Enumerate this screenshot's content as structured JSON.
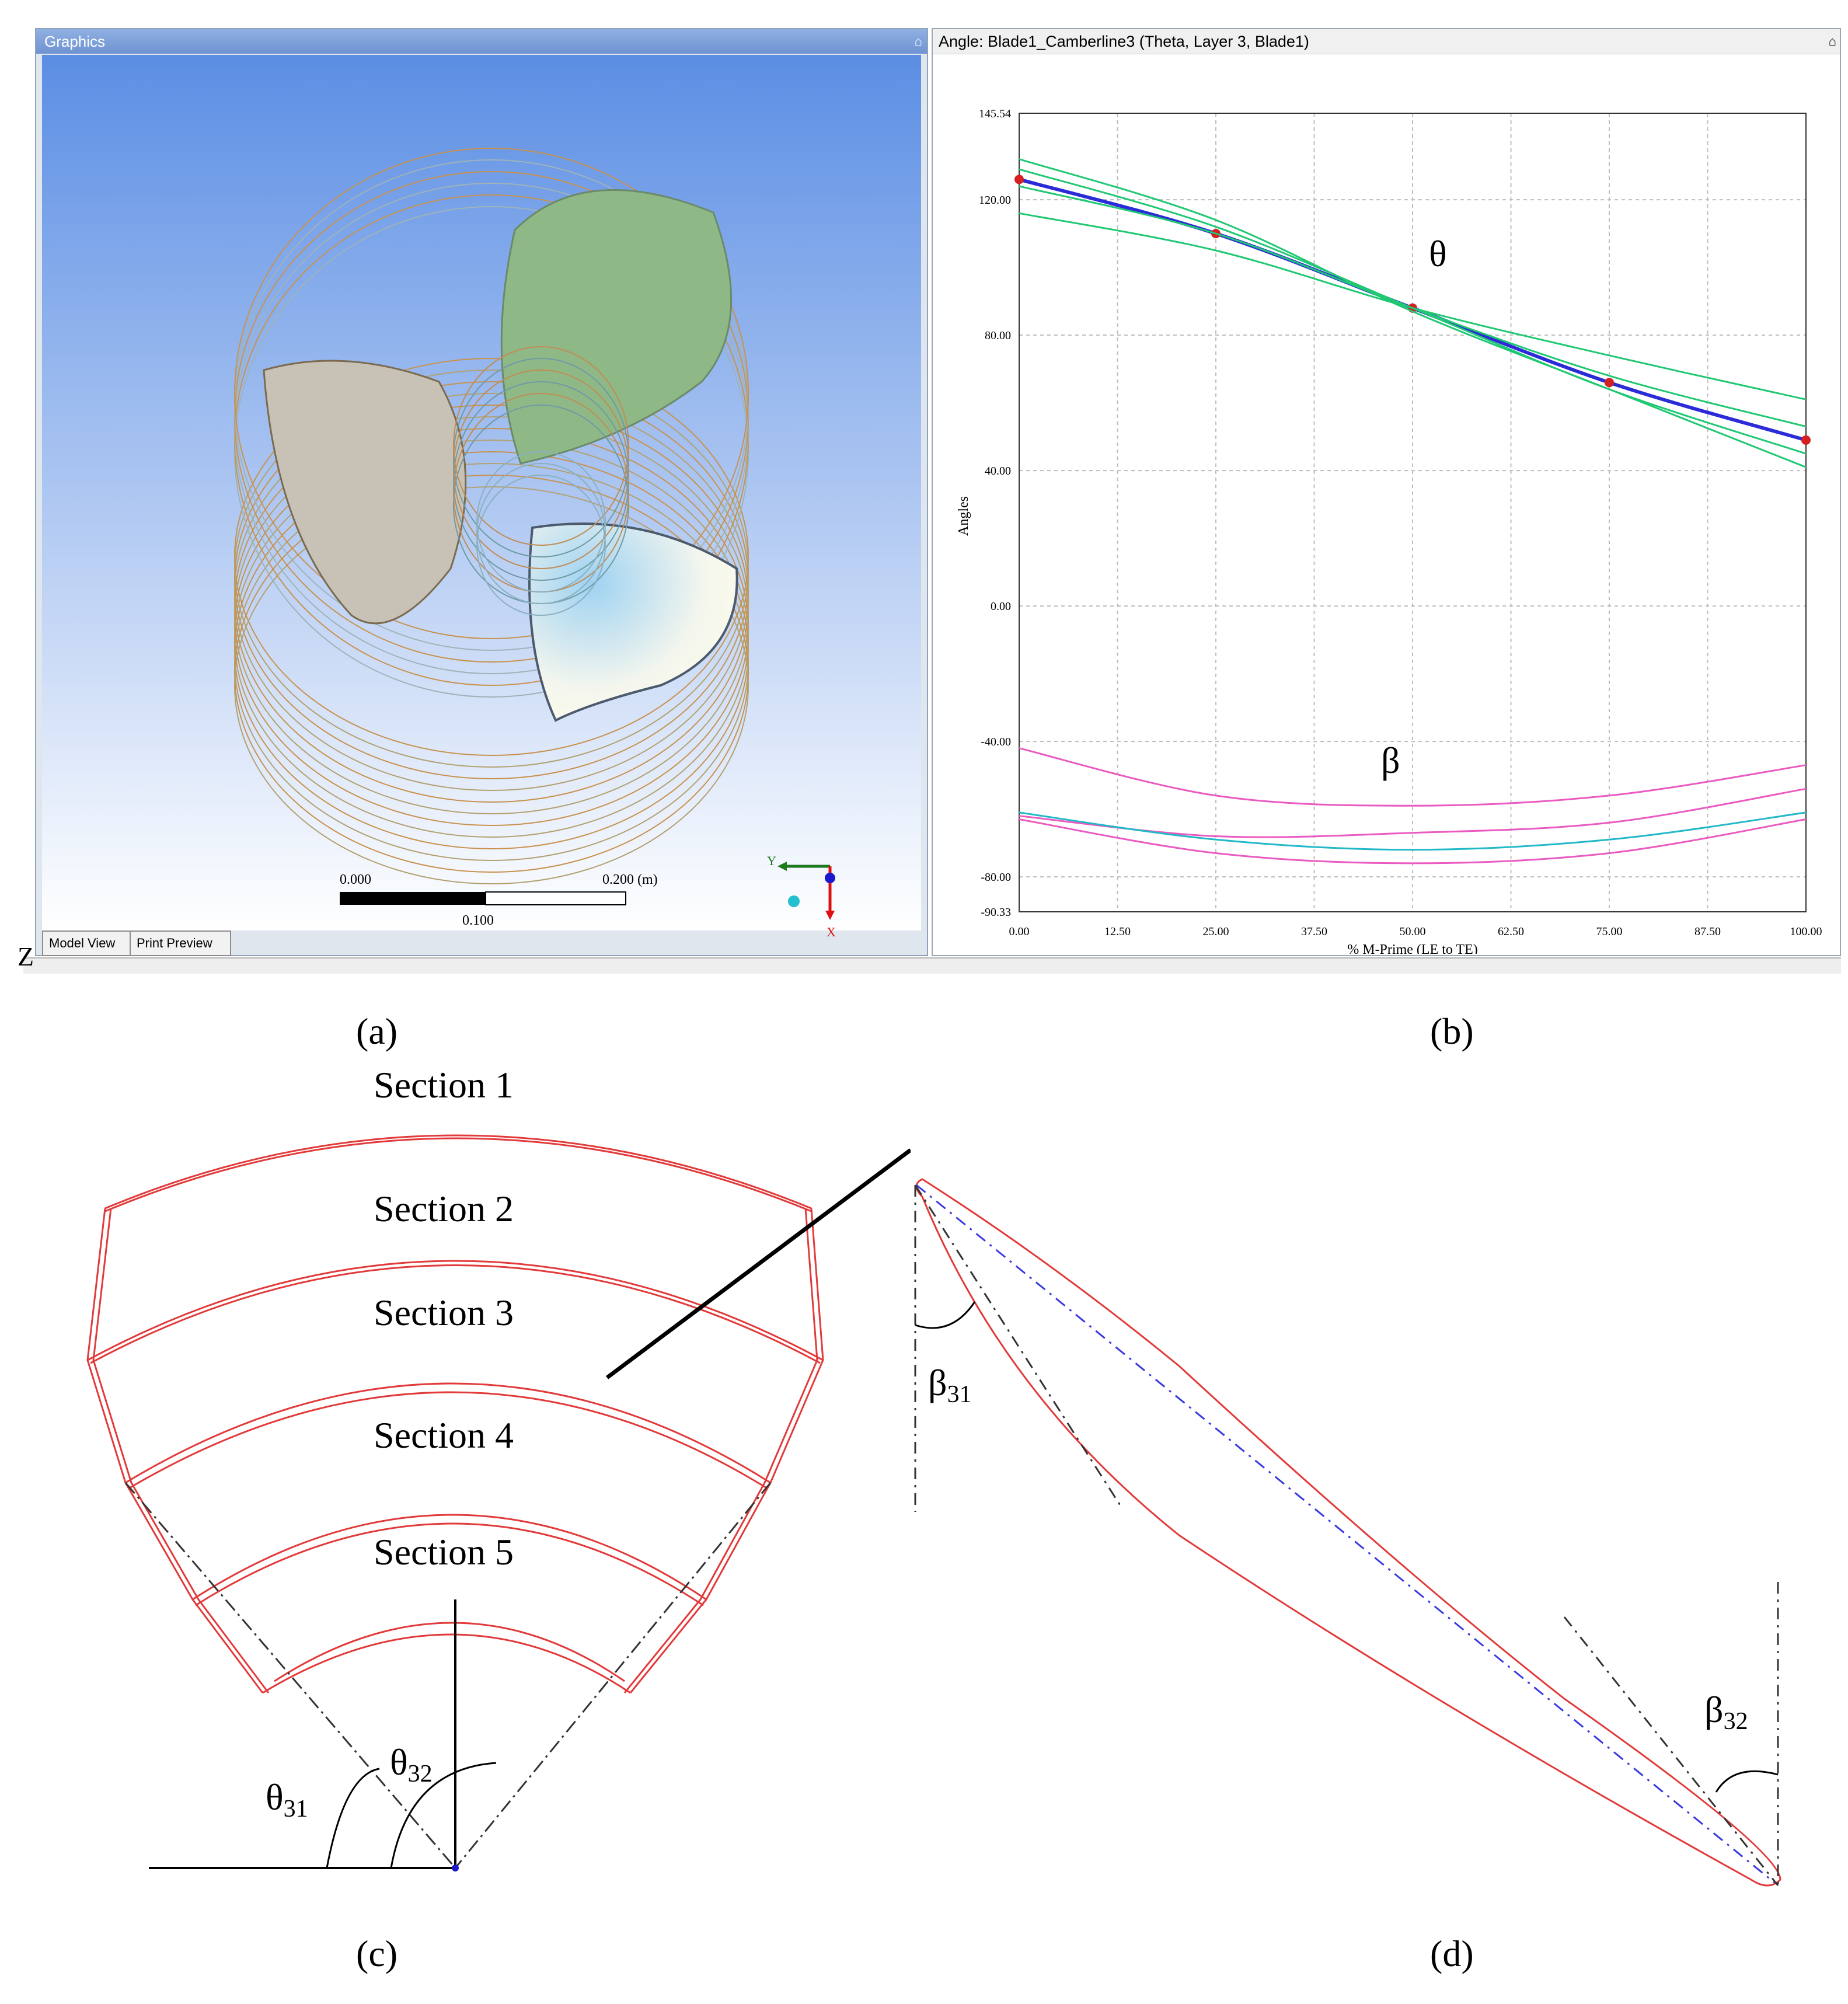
{
  "graphics_panel": {
    "title": "Graphics",
    "pin_glyph": "⌂",
    "scale_bar": {
      "left": "0.000",
      "right": "0.200 (m)",
      "middle": "0.100"
    },
    "axes": {
      "y": "Y",
      "x": "X"
    },
    "tabs": [
      "Model View",
      "Print Preview"
    ]
  },
  "angle_panel": {
    "title": "Angle: Blade1_Camberline3 (Theta, Layer 3, Blade1)",
    "pin_glyph": "⌂"
  },
  "z_letter": "Z",
  "chart_data": {
    "type": "line",
    "title": "",
    "xlabel": "% M-Prime (LE to TE)",
    "ylabel": "Angles",
    "xlim": [
      0,
      100
    ],
    "ylim": [
      -90.33,
      145.54
    ],
    "x_ticks": [
      "0.00",
      "12.50",
      "25.00",
      "37.50",
      "50.00",
      "62.50",
      "75.00",
      "87.50",
      "100.00"
    ],
    "y_ticks": [
      "145.54",
      "120.00",
      "80.00",
      "40.00",
      "0.00",
      "-40.00",
      "-80.00",
      "-90.33"
    ],
    "grid": true,
    "annotations": [
      "θ",
      "β"
    ],
    "x": [
      0,
      25,
      50,
      75,
      100
    ],
    "series": [
      {
        "values": [
          126,
          110,
          88,
          66,
          49
        ],
        "color": "#2b2bd8",
        "markers": true
      },
      {
        "values": [
          132,
          114,
          87,
          64,
          41
        ],
        "color": "#20c873"
      },
      {
        "values": [
          129,
          112,
          88,
          64,
          45
        ],
        "color": "#20c873"
      },
      {
        "values": [
          124,
          110,
          88,
          68,
          53
        ],
        "color": "#20c873"
      },
      {
        "values": [
          116,
          105,
          88,
          74,
          61
        ],
        "color": "#20c873"
      },
      {
        "values": [
          -42,
          -56,
          -59,
          -56,
          -47
        ],
        "color": "#ea5ac0"
      },
      {
        "values": [
          -62,
          -68,
          -67,
          -64,
          -54
        ],
        "color": "#ea5ac0"
      },
      {
        "values": [
          -61,
          -69,
          -72,
          -69,
          -61
        ],
        "color": "#22b8c8"
      },
      {
        "values": [
          -63,
          -73,
          -76,
          -73,
          -63
        ],
        "color": "#ea5ac0"
      }
    ]
  },
  "sublabels": {
    "a": "(a)",
    "b": "(b)",
    "c": "(c)",
    "d": "(d)"
  },
  "sections": [
    "Section 1",
    "Section 2",
    "Section 3",
    "Section 4",
    "Section 5"
  ],
  "angles": {
    "theta31": "θ31",
    "theta32": "θ32",
    "beta31": "β31",
    "beta32": "β32"
  }
}
